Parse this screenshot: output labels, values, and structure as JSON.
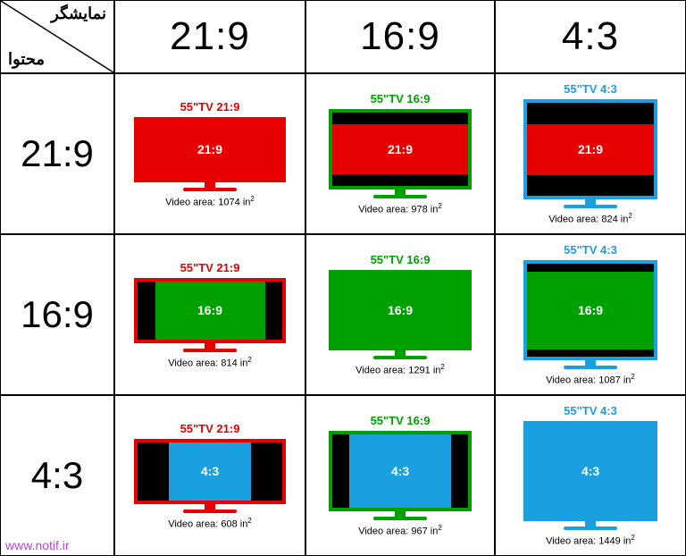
{
  "corner": {
    "top": "نمایشگر",
    "bottom": "محتوا"
  },
  "col_headers": [
    "21:9",
    "16:9",
    "4:3"
  ],
  "row_headers": [
    "21:9",
    "16:9",
    "4:3"
  ],
  "colors": {
    "red": "#e60000",
    "green": "#00a000",
    "blue": "#1aa0e0",
    "black": "#000000"
  },
  "tv_outer": {
    "21:9": {
      "w": 170,
      "h": 73,
      "border": 4
    },
    "16:9": {
      "w": 160,
      "h": 90,
      "border": 4
    },
    "4:3": {
      "w": 150,
      "h": 112,
      "border": 4
    }
  },
  "displays": [
    {
      "name": "21:9",
      "color_key": "red",
      "title_prefix": "55\"TV 21:9"
    },
    {
      "name": "16:9",
      "color_key": "green",
      "title_prefix": "55\"TV 16:9"
    },
    {
      "name": "4:3",
      "color_key": "blue",
      "title_prefix": "55\"TV 4:3"
    }
  ],
  "contents": [
    {
      "name": "21:9",
      "color_key": "red"
    },
    {
      "name": "16:9",
      "color_key": "green"
    },
    {
      "name": "4:3",
      "color_key": "blue"
    }
  ],
  "cells": [
    [
      {
        "area": 1074,
        "fill": "full",
        "content_label": "21:9"
      },
      {
        "area": 978,
        "fill": "letterbox",
        "content_label": "21:9",
        "inner_h_ratio": 0.68
      },
      {
        "area": 824,
        "fill": "letterbox",
        "content_label": "21:9",
        "inner_h_ratio": 0.55
      }
    ],
    [
      {
        "area": 814,
        "fill": "pillarbox",
        "content_label": "16:9",
        "inner_w_ratio": 0.76
      },
      {
        "area": 1291,
        "fill": "full",
        "content_label": "16:9"
      },
      {
        "area": 1087,
        "fill": "letterbox",
        "content_label": "16:9",
        "inner_h_ratio": 0.84
      }
    ],
    [
      {
        "area": 608,
        "fill": "pillarbox",
        "content_label": "4:3",
        "inner_w_ratio": 0.57
      },
      {
        "area": 967,
        "fill": "pillarbox",
        "content_label": "4:3",
        "inner_w_ratio": 0.75
      },
      {
        "area": 1449,
        "fill": "full",
        "content_label": "4:3"
      }
    ]
  ],
  "video_area_label": "Video area: ",
  "video_area_unit": " in",
  "watermark": "www.notif.ir"
}
